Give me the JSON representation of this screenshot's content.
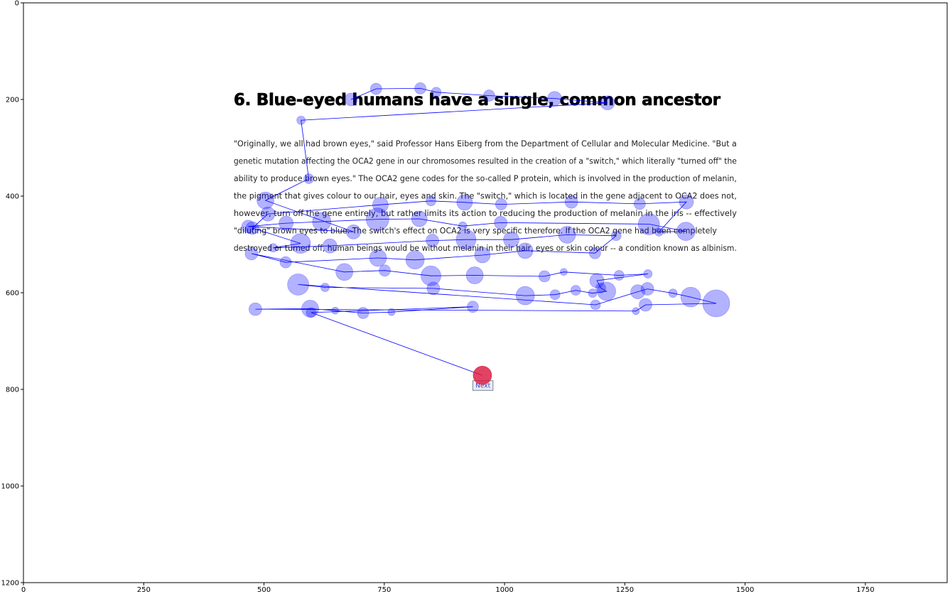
{
  "chart_data": {
    "type": "scatter",
    "xlim": [
      0,
      1920
    ],
    "ylim": [
      1200,
      0
    ],
    "x_ticks": [
      0,
      250,
      500,
      750,
      1000,
      1250,
      1500,
      1750
    ],
    "y_ticks": [
      0,
      200,
      400,
      600,
      800,
      1000,
      1200
    ],
    "stimulus": {
      "title": "6. Blue-eyed humans have a single, common ancestor",
      "paragraph_lines": [
        "\"Originally, we all had brown eyes,\" said Professor Hans Eiberg from the Department of Cellular and Molecular Medicine. \"But a",
        "genetic mutation affecting the OCA2 gene in our chromosomes resulted in the creation of a \"switch,\" which literally \"turned off\" the",
        "ability to produce brown eyes.\" The OCA2 gene codes for the so-called P protein, which is involved in the production of melanin,",
        "the pigment that gives colour to our hair, eyes and skin. The \"switch,\" which is located in the gene adjacent to OCA2 does not,",
        "however, turn off the gene entirely, but rather limits its action to reducing the production of melanin in the iris -- effectively",
        "\"diluting\" brown eyes to blue. The switch's effect on OCA2 is very specific therefore. If the OCA2 gene had been completely",
        "destroyed or turned off, human beings would be without melanin in their hair, eyes or skin colour -- a condition known as albinism."
      ],
      "button_label": "Next"
    },
    "fixation_color": "#0000ff",
    "last_fixation_color": "#dc143c",
    "fixations": [
      [
        681,
        200,
        9
      ],
      [
        733,
        178,
        8
      ],
      [
        825,
        177,
        8
      ],
      [
        858,
        185,
        7
      ],
      [
        968,
        192,
        8
      ],
      [
        1104,
        198,
        10
      ],
      [
        1214,
        207,
        10
      ],
      [
        577,
        243,
        6
      ],
      [
        593,
        364,
        7
      ],
      [
        503,
        409,
        12
      ],
      [
        686,
        474,
        10
      ],
      [
        467,
        463,
        9
      ],
      [
        546,
        456,
        10
      ],
      [
        620,
        453,
        13
      ],
      [
        736,
        448,
        16
      ],
      [
        823,
        447,
        11
      ],
      [
        913,
        462,
        6
      ],
      [
        992,
        455,
        9
      ],
      [
        1300,
        458,
        15
      ],
      [
        1377,
        473,
        13
      ],
      [
        1321,
        474,
        6
      ],
      [
        1378,
        412,
        10
      ],
      [
        1281,
        416,
        8
      ],
      [
        1139,
        412,
        9
      ],
      [
        993,
        417,
        8
      ],
      [
        917,
        413,
        11
      ],
      [
        847,
        410,
        7
      ],
      [
        742,
        418,
        11
      ],
      [
        508,
        437,
        10
      ],
      [
        476,
        466,
        9
      ],
      [
        576,
        498,
        14
      ],
      [
        519,
        507,
        6
      ],
      [
        637,
        503,
        10
      ],
      [
        850,
        492,
        9
      ],
      [
        920,
        490,
        14
      ],
      [
        1014,
        490,
        11
      ],
      [
        1130,
        480,
        12
      ],
      [
        1232,
        482,
        7
      ],
      [
        1188,
        518,
        8
      ],
      [
        1043,
        513,
        11
      ],
      [
        954,
        522,
        11
      ],
      [
        814,
        532,
        13
      ],
      [
        737,
        528,
        12
      ],
      [
        545,
        537,
        8
      ],
      [
        474,
        519,
        9
      ],
      [
        667,
        557,
        12
      ],
      [
        751,
        554,
        8
      ],
      [
        847,
        565,
        14
      ],
      [
        938,
        564,
        12
      ],
      [
        1083,
        566,
        8
      ],
      [
        1123,
        557,
        5
      ],
      [
        1238,
        564,
        7
      ],
      [
        1298,
        561,
        6
      ],
      [
        1192,
        575,
        10
      ],
      [
        1200,
        590,
        7
      ],
      [
        1212,
        597,
        13
      ],
      [
        1183,
        601,
        6
      ],
      [
        1148,
        595,
        7
      ],
      [
        1105,
        604,
        7
      ],
      [
        1043,
        606,
        13
      ],
      [
        852,
        591,
        9
      ],
      [
        627,
        589,
        6
      ],
      [
        571,
        583,
        15
      ],
      [
        1189,
        625,
        7
      ],
      [
        1277,
        598,
        10
      ],
      [
        1297,
        592,
        9
      ],
      [
        1350,
        601,
        6
      ],
      [
        1387,
        609,
        14
      ],
      [
        1440,
        622,
        19
      ],
      [
        1293,
        625,
        9
      ],
      [
        1273,
        638,
        5
      ],
      [
        482,
        634,
        9
      ],
      [
        596,
        633,
        12
      ],
      [
        648,
        637,
        5
      ],
      [
        706,
        642,
        8
      ],
      [
        765,
        640,
        5
      ],
      [
        934,
        629,
        8
      ],
      [
        598,
        641,
        7
      ],
      [
        954,
        771,
        13
      ]
    ]
  }
}
